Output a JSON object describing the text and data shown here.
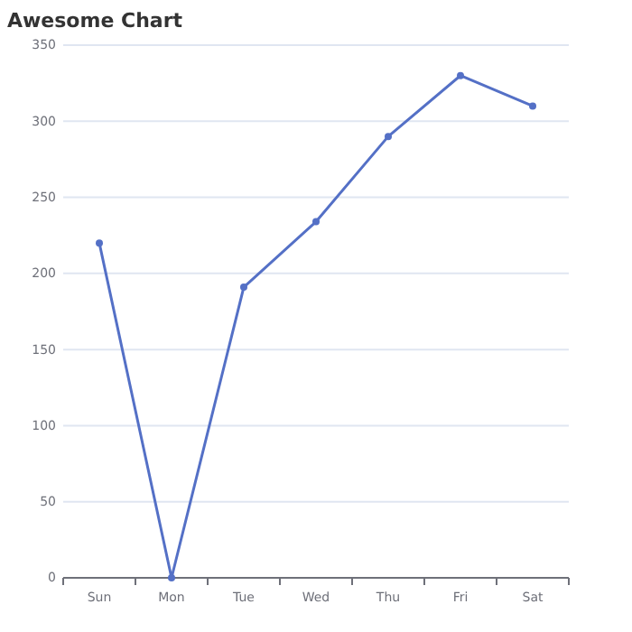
{
  "chart_data": {
    "type": "line",
    "title": "Awesome Chart",
    "categories": [
      "Sun",
      "Mon",
      "Tue",
      "Wed",
      "Thu",
      "Fri",
      "Sat"
    ],
    "series": [
      {
        "color": "#5470c6",
        "values": [
          220,
          0,
          191,
          234,
          290,
          330,
          310
        ]
      }
    ],
    "ylim": [
      0,
      350
    ],
    "yticks": [
      0,
      50,
      100,
      150,
      200,
      250,
      300,
      350
    ],
    "grid": "y",
    "marker": "circle",
    "line_style": "solid"
  }
}
